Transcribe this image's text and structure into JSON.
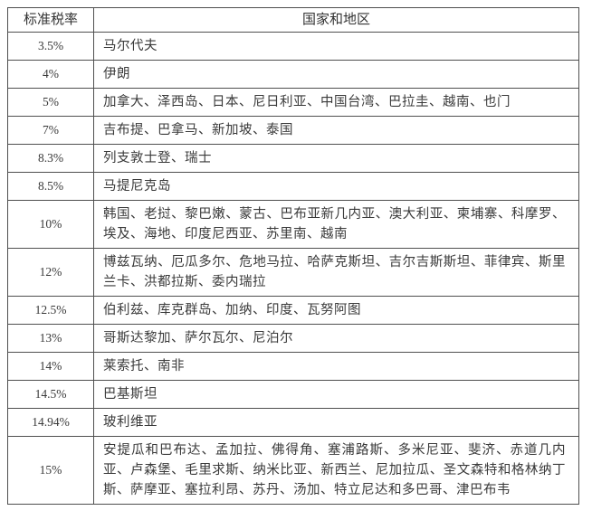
{
  "table": {
    "title_semantic": "standard-tax-rate-by-country",
    "headers": {
      "rate": "标准税率",
      "regions": "国家和地区"
    },
    "rows": [
      {
        "rate": "3.5%",
        "regions": "马尔代夫"
      },
      {
        "rate": "4%",
        "regions": "伊朗"
      },
      {
        "rate": "5%",
        "regions": "加拿大、泽西岛、日本、尼日利亚、中国台湾、巴拉圭、越南、也门"
      },
      {
        "rate": "7%",
        "regions": "吉布提、巴拿马、新加坡、泰国"
      },
      {
        "rate": "8.3%",
        "regions": "列支敦士登、瑞士"
      },
      {
        "rate": "8.5%",
        "regions": "马提尼克岛"
      },
      {
        "rate": "10%",
        "regions": "韩国、老挝、黎巴嫩、蒙古、巴布亚新几内亚、澳大利亚、柬埔寨、科摩罗、埃及、海地、印度尼西亚、苏里南、越南"
      },
      {
        "rate": "12%",
        "regions": "博兹瓦纳、厄瓜多尔、危地马拉、哈萨克斯坦、吉尔吉斯斯坦、菲律宾、斯里兰卡、洪都拉斯、委内瑞拉"
      },
      {
        "rate": "12.5%",
        "regions": "伯利兹、库克群岛、加纳、印度、瓦努阿图"
      },
      {
        "rate": "13%",
        "regions": "哥斯达黎加、萨尔瓦尔、尼泊尔"
      },
      {
        "rate": "14%",
        "regions": "莱索托、南非"
      },
      {
        "rate": "14.5%",
        "regions": "巴基斯坦"
      },
      {
        "rate": "14.94%",
        "regions": "玻利维亚"
      },
      {
        "rate": "15%",
        "regions": "安提瓜和巴布达、孟加拉、佛得角、塞浦路斯、多米尼亚、斐济、赤道几内亚、卢森堡、毛里求斯、纳米比亚、新西兰、尼加拉瓜、圣文森特和格林纳丁斯、萨摩亚、塞拉利昂、苏丹、汤加、特立尼达和多巴哥、津巴布韦"
      }
    ],
    "colors": {
      "border": "#4f4f4f",
      "text": "#3a3a3a",
      "background": "#ffffff"
    }
  }
}
